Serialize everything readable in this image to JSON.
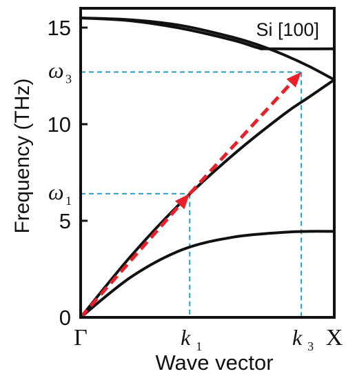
{
  "chart_data": {
    "type": "line",
    "annotation_label": "Si [100]",
    "xlabel": "Wave vector",
    "ylabel": "Frequency (THz)",
    "xlim": [
      0,
      1
    ],
    "ylim": [
      0,
      16
    ],
    "x_ticks": [
      {
        "x": 0,
        "label": "Γ",
        "style": "roman"
      },
      {
        "x": 0.43,
        "label": "k",
        "sub": "1",
        "style": "italic"
      },
      {
        "x": 0.87,
        "label": "k",
        "sub": "3",
        "style": "italic"
      },
      {
        "x": 1,
        "label": "X",
        "style": "roman"
      }
    ],
    "y_ticks": [
      {
        "y": 0,
        "label": "0"
      },
      {
        "y": 5,
        "label": "5"
      },
      {
        "y": 10,
        "label": "10"
      },
      {
        "y": 15,
        "label": "15"
      }
    ],
    "y_marks": [
      {
        "y": 6.4,
        "label": "ω",
        "sub": "1"
      },
      {
        "y": 12.7,
        "label": "ω",
        "sub": "3"
      }
    ],
    "series": [
      {
        "x": [
          0,
          0.2,
          0.4,
          0.6,
          0.8,
          0.9,
          1.0
        ],
        "y": [
          0,
          2.1,
          3.5,
          4.15,
          4.4,
          4.45,
          4.45
        ]
      },
      {
        "x": [
          0,
          0.2,
          0.4,
          0.6,
          0.8,
          0.9,
          1.0
        ],
        "y": [
          0,
          3.2,
          6.0,
          8.4,
          10.5,
          11.4,
          12.3
        ]
      },
      {
        "x": [
          0,
          0.2,
          0.4,
          0.6,
          0.7,
          0.8,
          0.9,
          1.0
        ],
        "y": [
          15.5,
          15.4,
          15.1,
          14.5,
          14.1,
          13.6,
          13.0,
          12.3
        ]
      },
      {
        "x": [
          0,
          0.2,
          0.4,
          0.6,
          0.7,
          0.74,
          1.0
        ],
        "y": [
          15.5,
          15.35,
          14.95,
          14.35,
          13.95,
          13.9,
          13.9
        ]
      }
    ],
    "guides": [
      {
        "x": 0.43,
        "y": 6.4
      },
      {
        "x": 0.87,
        "y": 12.7
      }
    ],
    "arrows": [
      {
        "from": [
          0,
          0
        ],
        "to": [
          0.43,
          6.4
        ],
        "color": "#e8202a"
      },
      {
        "from": [
          0.43,
          6.4
        ],
        "to": [
          0.87,
          12.7
        ],
        "color": "#e8202a"
      }
    ],
    "colors": {
      "axes": "#111111",
      "guide": "#1aa0c8",
      "arrow": "#e8202a",
      "curve": "#111111"
    }
  }
}
